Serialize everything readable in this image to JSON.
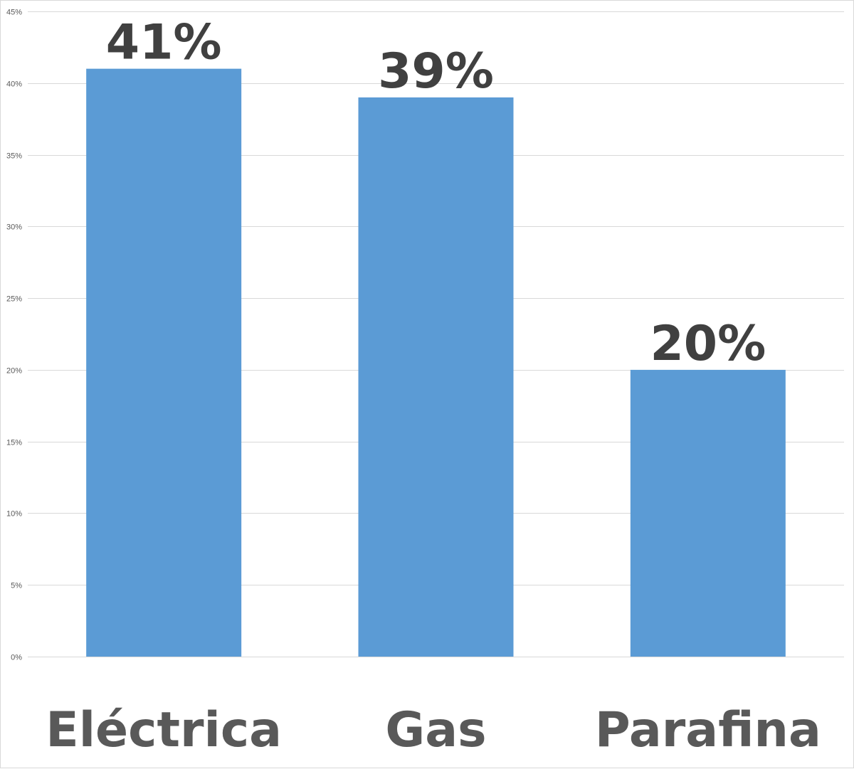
{
  "chart_data": {
    "type": "bar",
    "categories": [
      "Eléctrica",
      "Gas",
      "Parafina"
    ],
    "values": [
      41,
      39,
      20
    ],
    "data_labels": [
      "41%",
      "39%",
      "20%"
    ],
    "title": "",
    "xlabel": "",
    "ylabel": "",
    "ylim": [
      0,
      45
    ],
    "y_ticks": [
      0,
      5,
      10,
      15,
      20,
      25,
      30,
      35,
      40,
      45
    ],
    "y_tick_labels": [
      "0%",
      "5%",
      "10%",
      "15%",
      "20%",
      "25%",
      "30%",
      "35%",
      "40%",
      "45%"
    ],
    "grid": true,
    "legend": "none",
    "colors": {
      "bar": "#5b9bd5",
      "grid": "#d9d9d9",
      "data_label": "#404040",
      "category_label": "#595959",
      "tick_label": "#595959"
    }
  }
}
